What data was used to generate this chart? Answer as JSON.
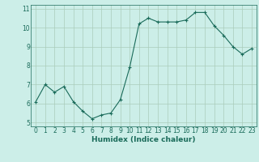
{
  "x": [
    0,
    1,
    2,
    3,
    4,
    5,
    6,
    7,
    8,
    9,
    10,
    11,
    12,
    13,
    14,
    15,
    16,
    17,
    18,
    19,
    20,
    21,
    22,
    23
  ],
  "y": [
    6.1,
    7.0,
    6.6,
    6.9,
    6.1,
    5.6,
    5.2,
    5.4,
    5.5,
    6.2,
    7.9,
    10.2,
    10.5,
    10.3,
    10.3,
    10.3,
    10.4,
    10.8,
    10.8,
    10.1,
    9.6,
    9.0,
    8.6,
    8.9
  ],
  "line_color": "#1a6b5a",
  "marker": "+",
  "marker_size": 3.0,
  "line_width": 0.8,
  "bg_color": "#cceee8",
  "grid_color": "#aaccbb",
  "xlabel": "Humidex (Indice chaleur)",
  "xlabel_fontsize": 6.5,
  "xlabel_color": "#1a6b5a",
  "tick_color": "#1a6b5a",
  "tick_fontsize": 5.5,
  "ylim": [
    4.8,
    11.2
  ],
  "xlim": [
    -0.5,
    23.5
  ],
  "yticks": [
    5,
    6,
    7,
    8,
    9,
    10,
    11
  ],
  "xticks": [
    0,
    1,
    2,
    3,
    4,
    5,
    6,
    7,
    8,
    9,
    10,
    11,
    12,
    13,
    14,
    15,
    16,
    17,
    18,
    19,
    20,
    21,
    22,
    23
  ]
}
